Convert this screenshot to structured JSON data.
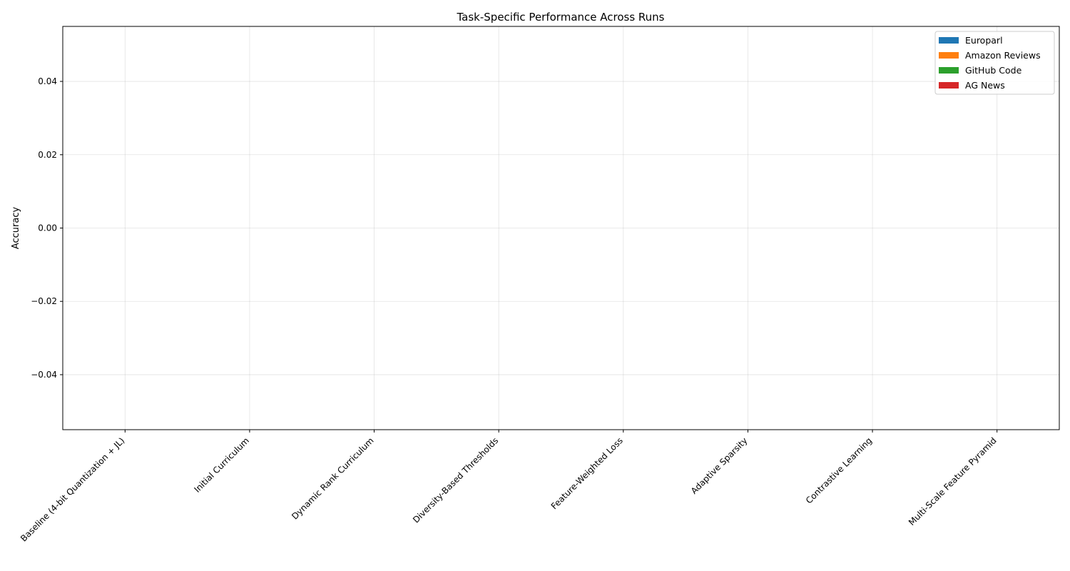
{
  "chart_data": {
    "type": "bar",
    "title": "Task-Specific Performance Across Runs",
    "xlabel": "",
    "ylabel": "Accuracy",
    "categories": [
      "Baseline (4-bit Quantization + JL)",
      "Initial Curriculum",
      "Dynamic Rank Curriculum",
      "Diversity-Based Thresholds",
      "Feature-Weighted Loss",
      "Adaptive Sparsity",
      "Contrastive Learning",
      "Multi-Scale Feature Pyramid"
    ],
    "series": [
      {
        "name": "Europarl",
        "color": "#1f77b4",
        "values": [
          0,
          0,
          0,
          0,
          0,
          0,
          0,
          0
        ]
      },
      {
        "name": "Amazon Reviews",
        "color": "#ff7f0e",
        "values": [
          0,
          0,
          0,
          0,
          0,
          0,
          0,
          0
        ]
      },
      {
        "name": "GitHub Code",
        "color": "#2ca02c",
        "values": [
          0,
          0,
          0,
          0,
          0,
          0,
          0,
          0
        ]
      },
      {
        "name": "AG News",
        "color": "#d62728",
        "values": [
          0,
          0,
          0,
          0,
          0,
          0,
          0,
          0
        ]
      }
    ],
    "ylim": [
      -0.055,
      0.055
    ],
    "yticks": [
      -0.04,
      -0.02,
      0.0,
      0.02,
      0.04
    ],
    "ytick_labels": [
      "−0.04",
      "−0.02",
      "0.00",
      "0.02",
      "0.04"
    ],
    "grid": true,
    "legend_position": "top-right"
  }
}
